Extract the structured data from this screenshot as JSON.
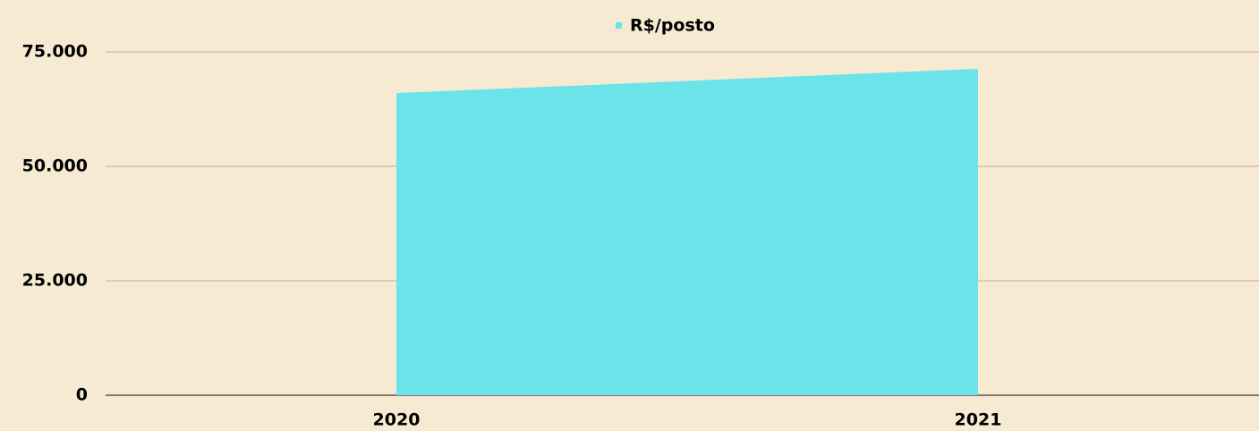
{
  "chart_data": {
    "type": "area",
    "categories": [
      "2020",
      "2021"
    ],
    "series": [
      {
        "name": "R$/posto",
        "color": "#6ae4e8",
        "values": [
          66000,
          71300
        ]
      }
    ],
    "ylim": [
      0,
      75000
    ],
    "yticks": [
      0,
      {
        "value": 25000,
        "label": "25.000"
      },
      {
        "value": 50000,
        "label": "50.000"
      },
      {
        "value": 75000,
        "label": "75.000"
      }
    ],
    "grid": true,
    "legend": "top"
  }
}
